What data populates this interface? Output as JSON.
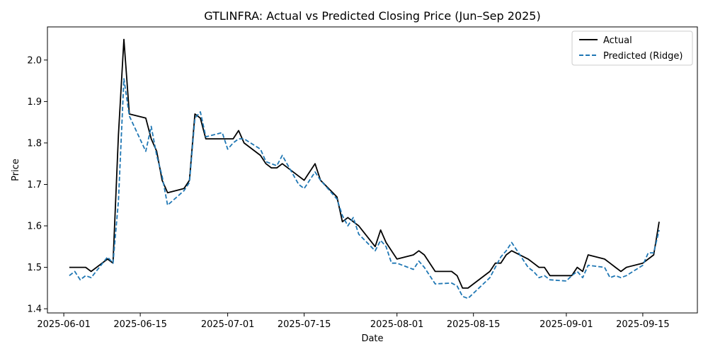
{
  "chart_data": {
    "type": "line",
    "title": "GTLINFRA: Actual vs Predicted Closing Price (Jun–Sep 2025)",
    "xlabel": "Date",
    "ylabel": "Price",
    "xlim": [
      "2025-05-29",
      "2025-09-25"
    ],
    "ylim": [
      1.39,
      2.08
    ],
    "x_ticks": [
      "2025-06-01",
      "2025-06-15",
      "2025-07-01",
      "2025-07-15",
      "2025-08-01",
      "2025-08-15",
      "2025-09-01",
      "2025-09-15"
    ],
    "y_ticks": [
      1.4,
      1.5,
      1.6,
      1.7,
      1.8,
      1.9,
      2.0
    ],
    "grid": false,
    "legend_position": "top-right",
    "series": [
      {
        "name": "Actual",
        "color": "#000000",
        "style": "solid",
        "points": [
          [
            "2025-06-02",
            1.5
          ],
          [
            "2025-06-03",
            1.5
          ],
          [
            "2025-06-04",
            1.5
          ],
          [
            "2025-06-05",
            1.5
          ],
          [
            "2025-06-06",
            1.49
          ],
          [
            "2025-06-09",
            1.52
          ],
          [
            "2025-06-10",
            1.51
          ],
          [
            "2025-06-11",
            1.82
          ],
          [
            "2025-06-12",
            2.05
          ],
          [
            "2025-06-13",
            1.87
          ],
          [
            "2025-06-16",
            1.86
          ],
          [
            "2025-06-17",
            1.81
          ],
          [
            "2025-06-18",
            1.78
          ],
          [
            "2025-06-19",
            1.71
          ],
          [
            "2025-06-20",
            1.68
          ],
          [
            "2025-06-23",
            1.69
          ],
          [
            "2025-06-24",
            1.71
          ],
          [
            "2025-06-25",
            1.87
          ],
          [
            "2025-06-26",
            1.86
          ],
          [
            "2025-06-27",
            1.81
          ],
          [
            "2025-06-30",
            1.81
          ],
          [
            "2025-07-01",
            1.81
          ],
          [
            "2025-07-02",
            1.81
          ],
          [
            "2025-07-03",
            1.83
          ],
          [
            "2025-07-04",
            1.8
          ],
          [
            "2025-07-07",
            1.77
          ],
          [
            "2025-07-08",
            1.75
          ],
          [
            "2025-07-09",
            1.74
          ],
          [
            "2025-07-10",
            1.74
          ],
          [
            "2025-07-11",
            1.75
          ],
          [
            "2025-07-14",
            1.72
          ],
          [
            "2025-07-15",
            1.71
          ],
          [
            "2025-07-16",
            1.73
          ],
          [
            "2025-07-17",
            1.75
          ],
          [
            "2025-07-18",
            1.71
          ],
          [
            "2025-07-21",
            1.67
          ],
          [
            "2025-07-22",
            1.61
          ],
          [
            "2025-07-23",
            1.62
          ],
          [
            "2025-07-24",
            1.61
          ],
          [
            "2025-07-25",
            1.6
          ],
          [
            "2025-07-28",
            1.55
          ],
          [
            "2025-07-29",
            1.59
          ],
          [
            "2025-07-30",
            1.56
          ],
          [
            "2025-07-31",
            1.54
          ],
          [
            "2025-08-01",
            1.52
          ],
          [
            "2025-08-04",
            1.53
          ],
          [
            "2025-08-05",
            1.54
          ],
          [
            "2025-08-06",
            1.53
          ],
          [
            "2025-08-08",
            1.49
          ],
          [
            "2025-08-11",
            1.49
          ],
          [
            "2025-08-12",
            1.48
          ],
          [
            "2025-08-13",
            1.45
          ],
          [
            "2025-08-14",
            1.45
          ],
          [
            "2025-08-18",
            1.49
          ],
          [
            "2025-08-19",
            1.51
          ],
          [
            "2025-08-20",
            1.51
          ],
          [
            "2025-08-21",
            1.53
          ],
          [
            "2025-08-22",
            1.54
          ],
          [
            "2025-08-25",
            1.52
          ],
          [
            "2025-08-26",
            1.51
          ],
          [
            "2025-08-27",
            1.5
          ],
          [
            "2025-08-28",
            1.5
          ],
          [
            "2025-08-29",
            1.48
          ],
          [
            "2025-09-01",
            1.48
          ],
          [
            "2025-09-02",
            1.48
          ],
          [
            "2025-09-03",
            1.5
          ],
          [
            "2025-09-04",
            1.49
          ],
          [
            "2025-09-05",
            1.53
          ],
          [
            "2025-09-08",
            1.52
          ],
          [
            "2025-09-09",
            1.51
          ],
          [
            "2025-09-10",
            1.5
          ],
          [
            "2025-09-11",
            1.49
          ],
          [
            "2025-09-12",
            1.5
          ],
          [
            "2025-09-15",
            1.51
          ],
          [
            "2025-09-16",
            1.52
          ],
          [
            "2025-09-17",
            1.53
          ],
          [
            "2025-09-18",
            1.61
          ]
        ]
      },
      {
        "name": "Predicted (Ridge)",
        "color": "#1f77b4",
        "style": "dashed",
        "points": [
          [
            "2025-06-02",
            1.48
          ],
          [
            "2025-06-03",
            1.49
          ],
          [
            "2025-06-04",
            1.47
          ],
          [
            "2025-06-05",
            1.48
          ],
          [
            "2025-06-06",
            1.475
          ],
          [
            "2025-06-09",
            1.525
          ],
          [
            "2025-06-10",
            1.51
          ],
          [
            "2025-06-11",
            1.66
          ],
          [
            "2025-06-12",
            1.955
          ],
          [
            "2025-06-13",
            1.865
          ],
          [
            "2025-06-16",
            1.78
          ],
          [
            "2025-06-17",
            1.84
          ],
          [
            "2025-06-18",
            1.77
          ],
          [
            "2025-06-19",
            1.72
          ],
          [
            "2025-06-20",
            1.65
          ],
          [
            "2025-06-23",
            1.685
          ],
          [
            "2025-06-24",
            1.705
          ],
          [
            "2025-06-25",
            1.86
          ],
          [
            "2025-06-26",
            1.875
          ],
          [
            "2025-06-27",
            1.815
          ],
          [
            "2025-06-30",
            1.825
          ],
          [
            "2025-07-01",
            1.785
          ],
          [
            "2025-07-02",
            1.8
          ],
          [
            "2025-07-03",
            1.81
          ],
          [
            "2025-07-04",
            1.81
          ],
          [
            "2025-07-07",
            1.785
          ],
          [
            "2025-07-08",
            1.755
          ],
          [
            "2025-07-09",
            1.75
          ],
          [
            "2025-07-10",
            1.745
          ],
          [
            "2025-07-11",
            1.77
          ],
          [
            "2025-07-14",
            1.7
          ],
          [
            "2025-07-15",
            1.69
          ],
          [
            "2025-07-16",
            1.71
          ],
          [
            "2025-07-17",
            1.73
          ],
          [
            "2025-07-18",
            1.71
          ],
          [
            "2025-07-21",
            1.665
          ],
          [
            "2025-07-22",
            1.625
          ],
          [
            "2025-07-23",
            1.6
          ],
          [
            "2025-07-24",
            1.62
          ],
          [
            "2025-07-25",
            1.58
          ],
          [
            "2025-07-28",
            1.54
          ],
          [
            "2025-07-29",
            1.565
          ],
          [
            "2025-07-30",
            1.55
          ],
          [
            "2025-07-31",
            1.51
          ],
          [
            "2025-08-01",
            1.51
          ],
          [
            "2025-08-04",
            1.495
          ],
          [
            "2025-08-05",
            1.515
          ],
          [
            "2025-08-06",
            1.5
          ],
          [
            "2025-08-08",
            1.46
          ],
          [
            "2025-08-11",
            1.462
          ],
          [
            "2025-08-12",
            1.455
          ],
          [
            "2025-08-13",
            1.43
          ],
          [
            "2025-08-14",
            1.425
          ],
          [
            "2025-08-18",
            1.475
          ],
          [
            "2025-08-19",
            1.5
          ],
          [
            "2025-08-20",
            1.525
          ],
          [
            "2025-08-21",
            1.54
          ],
          [
            "2025-08-22",
            1.56
          ],
          [
            "2025-08-25",
            1.5
          ],
          [
            "2025-08-26",
            1.49
          ],
          [
            "2025-08-27",
            1.475
          ],
          [
            "2025-08-28",
            1.48
          ],
          [
            "2025-08-29",
            1.47
          ],
          [
            "2025-09-01",
            1.467
          ],
          [
            "2025-09-02",
            1.48
          ],
          [
            "2025-09-03",
            1.49
          ],
          [
            "2025-09-04",
            1.475
          ],
          [
            "2025-09-05",
            1.505
          ],
          [
            "2025-09-08",
            1.5
          ],
          [
            "2025-09-09",
            1.475
          ],
          [
            "2025-09-10",
            1.48
          ],
          [
            "2025-09-11",
            1.475
          ],
          [
            "2025-09-12",
            1.48
          ],
          [
            "2025-09-15",
            1.505
          ],
          [
            "2025-09-16",
            1.535
          ],
          [
            "2025-09-17",
            1.535
          ],
          [
            "2025-09-18",
            1.59
          ]
        ]
      }
    ]
  }
}
